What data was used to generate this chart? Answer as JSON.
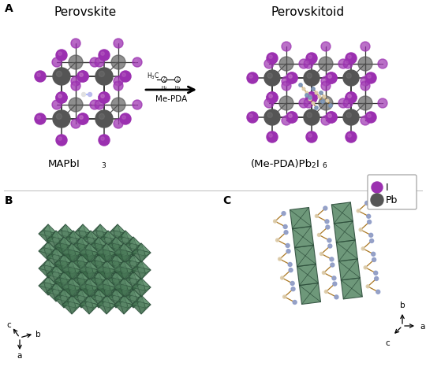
{
  "panel_A_label": "A",
  "panel_B_label": "B",
  "panel_C_label": "C",
  "title_perovskite": "Perovskite",
  "title_perovskitoid": "Perovskitoid",
  "legend_I": "I",
  "legend_Pb": "Pb",
  "color_I": "#9b30b0",
  "color_Pb": "#555555",
  "color_bond": "#333333",
  "color_bg": "#ffffff",
  "color_octa_light": "#7aaa85",
  "color_octa_mid": "#5a8a68",
  "color_octa_dark": "#3a6a48",
  "color_octa_edge": "#2a4a38",
  "fig_width": 5.4,
  "fig_height": 4.85,
  "dpi": 100
}
